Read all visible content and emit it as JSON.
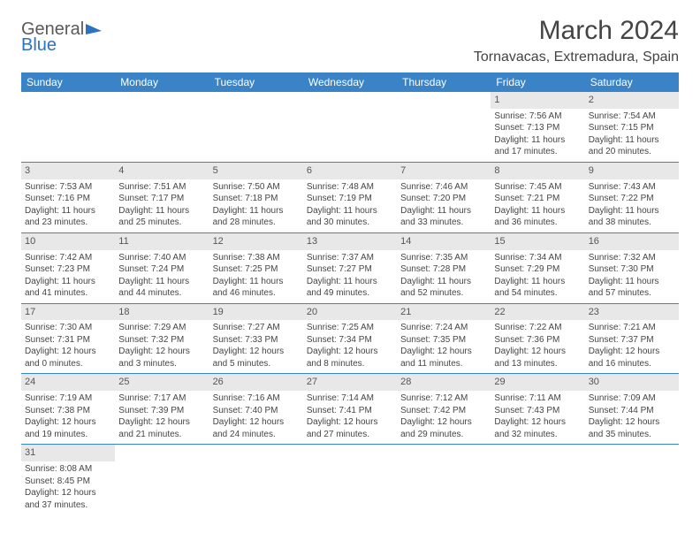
{
  "brand": {
    "part1": "General",
    "part2": "Blue"
  },
  "title": "March 2024",
  "location": "Tornavacas, Extremadura, Spain",
  "colors": {
    "header_bg": "#3b83c7",
    "header_text": "#ffffff",
    "daynum_bg": "#e8e8e8",
    "rule": "#3b83c7",
    "body_text": "#454545"
  },
  "weekdays": [
    "Sunday",
    "Monday",
    "Tuesday",
    "Wednesday",
    "Thursday",
    "Friday",
    "Saturday"
  ],
  "weeks": [
    [
      null,
      null,
      null,
      null,
      null,
      {
        "d": "1",
        "sr": "Sunrise: 7:56 AM",
        "ss": "Sunset: 7:13 PM",
        "dl1": "Daylight: 11 hours",
        "dl2": "and 17 minutes."
      },
      {
        "d": "2",
        "sr": "Sunrise: 7:54 AM",
        "ss": "Sunset: 7:15 PM",
        "dl1": "Daylight: 11 hours",
        "dl2": "and 20 minutes."
      }
    ],
    [
      {
        "d": "3",
        "sr": "Sunrise: 7:53 AM",
        "ss": "Sunset: 7:16 PM",
        "dl1": "Daylight: 11 hours",
        "dl2": "and 23 minutes."
      },
      {
        "d": "4",
        "sr": "Sunrise: 7:51 AM",
        "ss": "Sunset: 7:17 PM",
        "dl1": "Daylight: 11 hours",
        "dl2": "and 25 minutes."
      },
      {
        "d": "5",
        "sr": "Sunrise: 7:50 AM",
        "ss": "Sunset: 7:18 PM",
        "dl1": "Daylight: 11 hours",
        "dl2": "and 28 minutes."
      },
      {
        "d": "6",
        "sr": "Sunrise: 7:48 AM",
        "ss": "Sunset: 7:19 PM",
        "dl1": "Daylight: 11 hours",
        "dl2": "and 30 minutes."
      },
      {
        "d": "7",
        "sr": "Sunrise: 7:46 AM",
        "ss": "Sunset: 7:20 PM",
        "dl1": "Daylight: 11 hours",
        "dl2": "and 33 minutes."
      },
      {
        "d": "8",
        "sr": "Sunrise: 7:45 AM",
        "ss": "Sunset: 7:21 PM",
        "dl1": "Daylight: 11 hours",
        "dl2": "and 36 minutes."
      },
      {
        "d": "9",
        "sr": "Sunrise: 7:43 AM",
        "ss": "Sunset: 7:22 PM",
        "dl1": "Daylight: 11 hours",
        "dl2": "and 38 minutes."
      }
    ],
    [
      {
        "d": "10",
        "sr": "Sunrise: 7:42 AM",
        "ss": "Sunset: 7:23 PM",
        "dl1": "Daylight: 11 hours",
        "dl2": "and 41 minutes."
      },
      {
        "d": "11",
        "sr": "Sunrise: 7:40 AM",
        "ss": "Sunset: 7:24 PM",
        "dl1": "Daylight: 11 hours",
        "dl2": "and 44 minutes."
      },
      {
        "d": "12",
        "sr": "Sunrise: 7:38 AM",
        "ss": "Sunset: 7:25 PM",
        "dl1": "Daylight: 11 hours",
        "dl2": "and 46 minutes."
      },
      {
        "d": "13",
        "sr": "Sunrise: 7:37 AM",
        "ss": "Sunset: 7:27 PM",
        "dl1": "Daylight: 11 hours",
        "dl2": "and 49 minutes."
      },
      {
        "d": "14",
        "sr": "Sunrise: 7:35 AM",
        "ss": "Sunset: 7:28 PM",
        "dl1": "Daylight: 11 hours",
        "dl2": "and 52 minutes."
      },
      {
        "d": "15",
        "sr": "Sunrise: 7:34 AM",
        "ss": "Sunset: 7:29 PM",
        "dl1": "Daylight: 11 hours",
        "dl2": "and 54 minutes."
      },
      {
        "d": "16",
        "sr": "Sunrise: 7:32 AM",
        "ss": "Sunset: 7:30 PM",
        "dl1": "Daylight: 11 hours",
        "dl2": "and 57 minutes."
      }
    ],
    [
      {
        "d": "17",
        "sr": "Sunrise: 7:30 AM",
        "ss": "Sunset: 7:31 PM",
        "dl1": "Daylight: 12 hours",
        "dl2": "and 0 minutes."
      },
      {
        "d": "18",
        "sr": "Sunrise: 7:29 AM",
        "ss": "Sunset: 7:32 PM",
        "dl1": "Daylight: 12 hours",
        "dl2": "and 3 minutes."
      },
      {
        "d": "19",
        "sr": "Sunrise: 7:27 AM",
        "ss": "Sunset: 7:33 PM",
        "dl1": "Daylight: 12 hours",
        "dl2": "and 5 minutes."
      },
      {
        "d": "20",
        "sr": "Sunrise: 7:25 AM",
        "ss": "Sunset: 7:34 PM",
        "dl1": "Daylight: 12 hours",
        "dl2": "and 8 minutes."
      },
      {
        "d": "21",
        "sr": "Sunrise: 7:24 AM",
        "ss": "Sunset: 7:35 PM",
        "dl1": "Daylight: 12 hours",
        "dl2": "and 11 minutes."
      },
      {
        "d": "22",
        "sr": "Sunrise: 7:22 AM",
        "ss": "Sunset: 7:36 PM",
        "dl1": "Daylight: 12 hours",
        "dl2": "and 13 minutes."
      },
      {
        "d": "23",
        "sr": "Sunrise: 7:21 AM",
        "ss": "Sunset: 7:37 PM",
        "dl1": "Daylight: 12 hours",
        "dl2": "and 16 minutes."
      }
    ],
    [
      {
        "d": "24",
        "sr": "Sunrise: 7:19 AM",
        "ss": "Sunset: 7:38 PM",
        "dl1": "Daylight: 12 hours",
        "dl2": "and 19 minutes."
      },
      {
        "d": "25",
        "sr": "Sunrise: 7:17 AM",
        "ss": "Sunset: 7:39 PM",
        "dl1": "Daylight: 12 hours",
        "dl2": "and 21 minutes."
      },
      {
        "d": "26",
        "sr": "Sunrise: 7:16 AM",
        "ss": "Sunset: 7:40 PM",
        "dl1": "Daylight: 12 hours",
        "dl2": "and 24 minutes."
      },
      {
        "d": "27",
        "sr": "Sunrise: 7:14 AM",
        "ss": "Sunset: 7:41 PM",
        "dl1": "Daylight: 12 hours",
        "dl2": "and 27 minutes."
      },
      {
        "d": "28",
        "sr": "Sunrise: 7:12 AM",
        "ss": "Sunset: 7:42 PM",
        "dl1": "Daylight: 12 hours",
        "dl2": "and 29 minutes."
      },
      {
        "d": "29",
        "sr": "Sunrise: 7:11 AM",
        "ss": "Sunset: 7:43 PM",
        "dl1": "Daylight: 12 hours",
        "dl2": "and 32 minutes."
      },
      {
        "d": "30",
        "sr": "Sunrise: 7:09 AM",
        "ss": "Sunset: 7:44 PM",
        "dl1": "Daylight: 12 hours",
        "dl2": "and 35 minutes."
      }
    ],
    [
      {
        "d": "31",
        "sr": "Sunrise: 8:08 AM",
        "ss": "Sunset: 8:45 PM",
        "dl1": "Daylight: 12 hours",
        "dl2": "and 37 minutes."
      },
      null,
      null,
      null,
      null,
      null,
      null
    ]
  ]
}
